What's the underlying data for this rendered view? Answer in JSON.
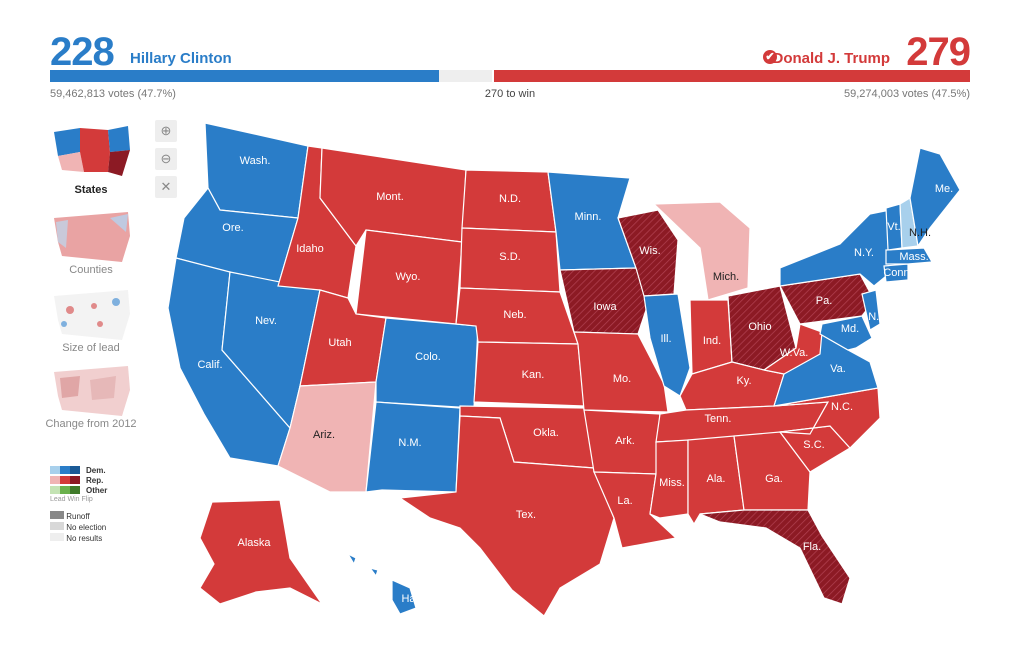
{
  "header": {
    "dem_electoral": "228",
    "dem_name": "Hillary Clinton",
    "dem_votes": "59,462,813 votes (47.7%)",
    "rep_electoral": "279",
    "rep_name": "Donald J. Trump",
    "rep_votes": "59,274,003 votes (47.5%)",
    "to_win": "270 to win",
    "winner_check": "✔",
    "dem_bar_fraction": 0.423,
    "rep_bar_fraction": 0.519
  },
  "colors": {
    "dem": "#2a7dc8",
    "dem_light": "#a8d0ec",
    "rep": "#d33a3a",
    "rep_light": "#f0b4b4",
    "rep_flip": "#8c1a24",
    "other": "#6ab04c",
    "runoff": "#888888",
    "no_election": "#d8d8d8",
    "no_results": "#eeeeee"
  },
  "sidebar": {
    "views": [
      {
        "label": "States"
      },
      {
        "label": "Counties"
      },
      {
        "label": "Size of lead"
      },
      {
        "label": "Change from 2012"
      }
    ],
    "zoom_in_icon": "zoom-in-icon",
    "zoom_out_icon": "zoom-out-icon",
    "reset_icon": "close-icon"
  },
  "legend": {
    "dem": "Dem.",
    "rep": "Rep.",
    "other": "Other",
    "sub": "Lead  Win  Flip",
    "runoff": "Runoff",
    "no_election": "No election",
    "no_results": "No results"
  },
  "states": {
    "wa": "Wash.",
    "or": "Ore.",
    "ca": "Calif.",
    "nv": "Nev.",
    "id": "Idaho",
    "mt": "Mont.",
    "wy": "Wyo.",
    "ut": "Utah",
    "az": "Ariz.",
    "co": "Colo.",
    "nm": "N.M.",
    "nd": "N.D.",
    "sd": "S.D.",
    "ne": "Neb.",
    "ks": "Kan.",
    "ok": "Okla.",
    "tx": "Tex.",
    "mn": "Minn.",
    "ia": "Iowa",
    "mo": "Mo.",
    "ar": "Ark.",
    "la": "La.",
    "wi": "Wis.",
    "il": "Ill.",
    "mi": "Mich.",
    "in": "Ind.",
    "oh": "Ohio",
    "ky": "Ky.",
    "tn": "Tenn.",
    "ms": "Miss.",
    "al": "Ala.",
    "ga": "Ga.",
    "fl": "Fla.",
    "sc": "S.C.",
    "nc": "N.C.",
    "va": "Va.",
    "wv": "W.Va.",
    "pa": "Pa.",
    "ny": "N.Y.",
    "vt": "Vt.",
    "nh": "N.H.",
    "me": "Me.",
    "ma": "Mass.",
    "ct": "Conn.",
    "nj": "N.J.",
    "md": "Md.",
    "ak": "Alaska",
    "hi": "Hawaii"
  }
}
